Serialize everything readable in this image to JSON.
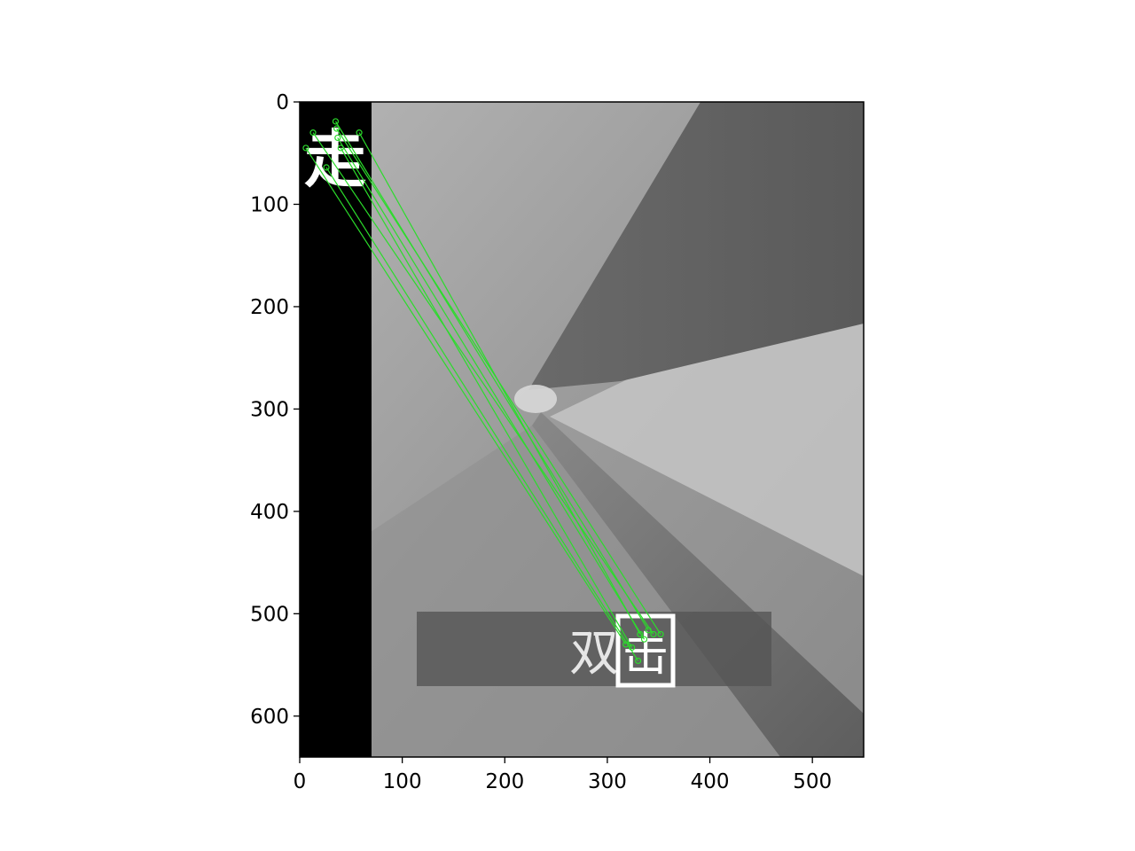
{
  "chart_data": {
    "type": "image",
    "title": "",
    "xlabel": "",
    "ylabel": "",
    "xlim": [
      0,
      550
    ],
    "ylim": [
      640,
      0
    ],
    "x_ticks": [
      0,
      100,
      200,
      300,
      400,
      500
    ],
    "y_ticks": [
      0,
      100,
      200,
      300,
      400,
      500,
      600
    ],
    "grid": false,
    "image_text": {
      "top_left_glyph": "走",
      "bottom_caption_left": "双",
      "bottom_caption_right": "击"
    },
    "match_lines": [
      {
        "from": [
          35,
          19
        ],
        "to": [
          340,
          516
        ]
      },
      {
        "from": [
          36,
          26
        ],
        "to": [
          352,
          520
        ]
      },
      {
        "from": [
          13,
          30
        ],
        "to": [
          345,
          520
        ]
      },
      {
        "from": [
          58,
          30
        ],
        "to": [
          332,
          520
        ]
      },
      {
        "from": [
          6,
          45
        ],
        "to": [
          318,
          530
        ]
      },
      {
        "from": [
          37,
          35
        ],
        "to": [
          336,
          525
        ]
      },
      {
        "from": [
          26,
          64
        ],
        "to": [
          330,
          546
        ]
      },
      {
        "from": [
          40,
          45
        ],
        "to": [
          324,
          533
        ]
      }
    ],
    "match_color": "#2bdc2b"
  }
}
